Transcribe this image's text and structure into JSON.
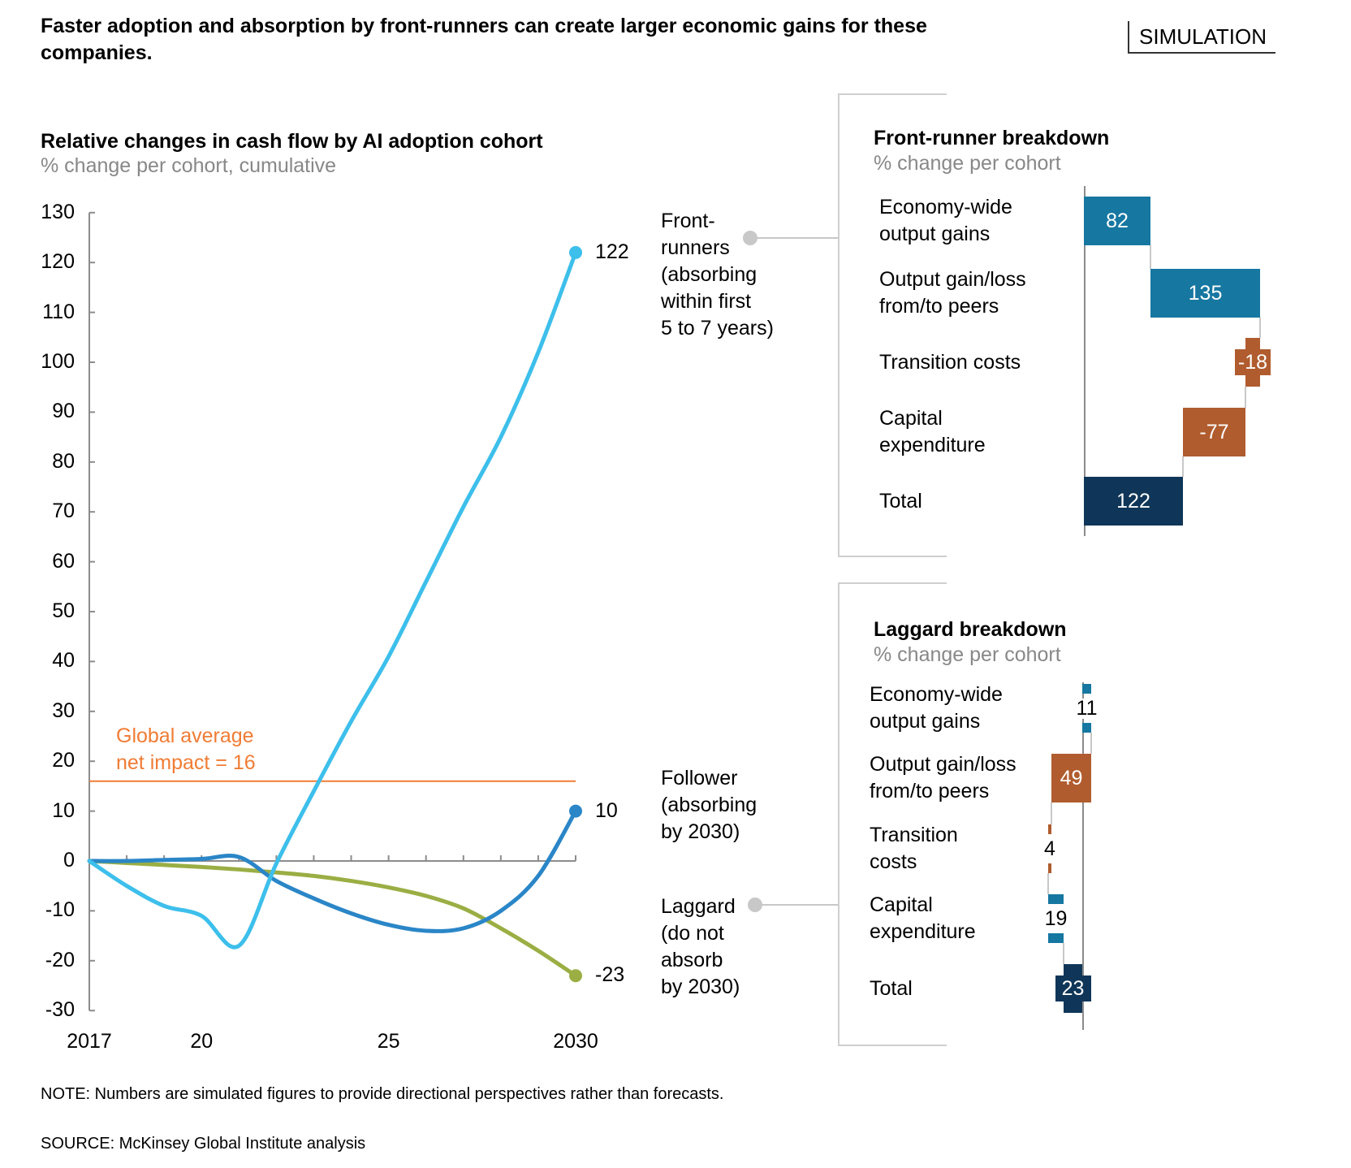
{
  "headline": "Faster adoption and absorption by front-runners can create larger economic gains for these companies.",
  "badge": "SIMULATION",
  "chart_data": [
    {
      "type": "line",
      "title": "Relative changes in cash flow by AI adoption cohort",
      "subtitle": "% change per cohort, cumulative",
      "xlabel": "",
      "ylabel": "",
      "xlim": [
        2017,
        2030
      ],
      "ylim": [
        -30,
        130
      ],
      "yticks": [
        130,
        120,
        110,
        100,
        90,
        80,
        70,
        60,
        50,
        40,
        30,
        20,
        10,
        0,
        -10,
        -20,
        -30
      ],
      "ytick_labels": [
        "130",
        "120",
        "110",
        "100",
        "90",
        "80",
        "70",
        "60",
        "50",
        "40",
        "30",
        "20",
        "10",
        "0",
        "-10",
        "-20",
        "-30"
      ],
      "xticks": [
        2017,
        2018,
        2019,
        2020,
        2021,
        2022,
        2023,
        2024,
        2025,
        2026,
        2027,
        2028,
        2029,
        2030
      ],
      "xtick_labels": [
        {
          "x": 2017,
          "label": "2017"
        },
        {
          "x": 2020,
          "label": "20"
        },
        {
          "x": 2025,
          "label": "25"
        },
        {
          "x": 2030,
          "label": "2030"
        }
      ],
      "grid": false,
      "x": [
        2017,
        2018,
        2019,
        2020,
        2021,
        2022,
        2023,
        2024,
        2025,
        2026,
        2027,
        2028,
        2029,
        2030
      ],
      "series": [
        {
          "name": "Front-runners",
          "label_lines": [
            "Front-",
            "runners",
            "(absorbing",
            "within first",
            "5 to 7 years)"
          ],
          "color": "#3dbfeb",
          "values": [
            0,
            -5,
            -9,
            -11,
            -17,
            -0.5,
            14,
            28,
            41,
            56,
            71,
            85,
            102,
            122
          ],
          "end_label": "122"
        },
        {
          "name": "Follower",
          "label_lines": [
            "Follower",
            "(absorbing",
            "by 2030)"
          ],
          "color": "#2a86c7",
          "values": [
            0,
            0,
            0.2,
            0.4,
            0.8,
            -4,
            -7.5,
            -10.5,
            -12.8,
            -14,
            -13.5,
            -10,
            -3,
            10
          ],
          "end_label": "10"
        },
        {
          "name": "Laggard",
          "label_lines": [
            "Laggard",
            "(do not",
            "absorb",
            "by 2030)"
          ],
          "color": "#9aae44",
          "values": [
            0,
            -0.4,
            -0.8,
            -1.2,
            -1.7,
            -2.3,
            -3,
            -4,
            -5.3,
            -7,
            -9.5,
            -13.5,
            -18,
            -23
          ],
          "end_label": "-23"
        }
      ],
      "reference_line": {
        "value": 16,
        "label_lines": [
          "Global average",
          "net impact = 16"
        ],
        "color": "#f07c34"
      }
    },
    {
      "type": "bar",
      "subtype": "waterfall",
      "title": "Front-runner breakdown",
      "subtitle": "% change per cohort",
      "categories": [
        "Economy-wide output gains",
        "Output gain/loss from/to peers",
        "Transition costs",
        "Capital expenditure",
        "Total"
      ],
      "category_lines": [
        [
          "Economy-wide",
          "output gains"
        ],
        [
          "Output gain/loss",
          "from/to peers"
        ],
        [
          "Transition costs"
        ],
        [
          "Capital",
          "expenditure"
        ],
        [
          "Total"
        ]
      ],
      "values": [
        82,
        135,
        -18,
        -77,
        122
      ],
      "labels": [
        "82",
        "135",
        "-18",
        "-77",
        "122"
      ],
      "is_total": [
        false,
        false,
        false,
        false,
        true
      ]
    },
    {
      "type": "bar",
      "subtype": "waterfall",
      "title": "Laggard breakdown",
      "subtitle": "% change per cohort",
      "categories": [
        "Economy-wide output gains",
        "Output gain/loss from/to peers",
        "Transition costs",
        "Capital expenditure",
        "Total"
      ],
      "category_lines": [
        [
          "Economy-wide",
          "output gains"
        ],
        [
          "Output gain/loss",
          "from/to peers"
        ],
        [
          "Transition",
          "costs"
        ],
        [
          "Capital",
          "expenditure"
        ],
        [
          "Total"
        ]
      ],
      "values": [
        11,
        -49,
        -4,
        19,
        -23
      ],
      "labels": [
        "11",
        "49",
        "4",
        "19",
        "23"
      ],
      "is_total": [
        false,
        false,
        false,
        false,
        true
      ]
    }
  ],
  "colors": {
    "positive": "#1677a1",
    "negative": "#b05c2f",
    "total": "#0f3658",
    "axis": "#8c8c8c",
    "connector": "#c8c8c8",
    "subtitle": "#888888"
  },
  "footer": {
    "note": "NOTE: Numbers are simulated figures to provide directional perspectives rather than forecasts.",
    "source": "SOURCE:  McKinsey Global Institute analysis"
  }
}
